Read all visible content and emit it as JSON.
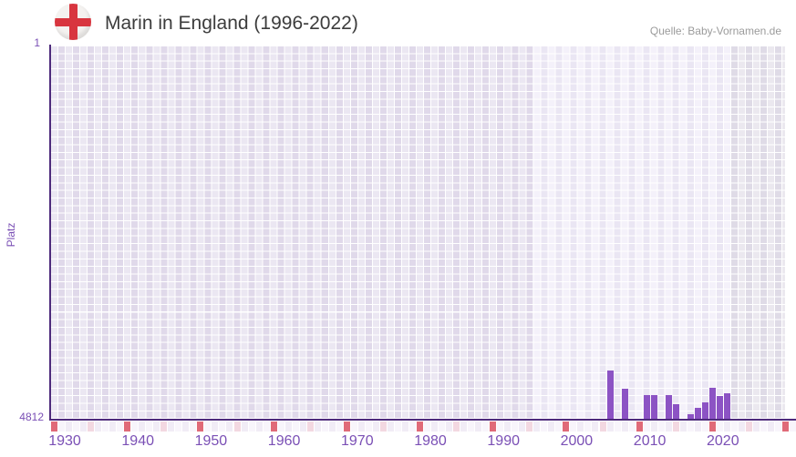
{
  "header": {
    "flag": "england-flag",
    "title": "Marin in England (1996-2022)",
    "source": "Quelle: Baby-Vornamen.de"
  },
  "chart_data": {
    "type": "bar",
    "title": "Marin in England (1996-2022)",
    "name": "Marin",
    "region": "England",
    "ylabel": "Platz",
    "xlabel": "",
    "grid": true,
    "legend": "none",
    "y_axis": {
      "min": 1,
      "max": 4812,
      "inverted": true,
      "tick_labels": [
        "1",
        "4812"
      ]
    },
    "x_axis": {
      "min": 1928,
      "max": 2029,
      "tick_years": [
        1930,
        1940,
        1950,
        1960,
        1970,
        1980,
        1990,
        2000,
        2010,
        2020
      ]
    },
    "points": [
      {
        "year": 2004,
        "platz": 4182
      },
      {
        "year": 2006,
        "platz": 4417
      },
      {
        "year": 2009,
        "platz": 4498
      },
      {
        "year": 2010,
        "platz": 4498
      },
      {
        "year": 2012,
        "platz": 4498
      },
      {
        "year": 2013,
        "platz": 4615
      },
      {
        "year": 2015,
        "platz": 4740
      },
      {
        "year": 2016,
        "platz": 4663
      },
      {
        "year": 2017,
        "platz": 4591
      },
      {
        "year": 2018,
        "platz": 4403
      },
      {
        "year": 2019,
        "platz": 4509
      },
      {
        "year": 2020,
        "platz": 4475
      }
    ],
    "background_bands": [
      {
        "from": 1928,
        "to": 1994,
        "shade": "base"
      },
      {
        "from": 1994,
        "to": 2021,
        "shade": "light"
      },
      {
        "from": 2021,
        "to": 2028.5,
        "shade": "dark"
      }
    ],
    "timeline_strip": {
      "red_years": [
        1928,
        1938,
        1948,
        1958,
        1968,
        1978,
        1988,
        1998,
        2008,
        2018,
        2028
      ],
      "pink_years": [
        1933,
        1943,
        1953,
        1963,
        1973,
        1983,
        1993,
        2003,
        2013,
        2023
      ]
    }
  },
  "colors": {
    "bar": "#8c53c4",
    "axis_line": "#4e2b7c",
    "tick_text": "#7a4fb5",
    "title_text": "#3c3c3c",
    "source_text": "#9b9b9b",
    "strip_red": "#e06a78",
    "strip_pink": "#f3d8e1",
    "strip_even": "#f1ecf6",
    "strip_odd": "#f8f5fb",
    "flag_cross": "#d8353f",
    "flag_field": "#f4f2f0"
  }
}
